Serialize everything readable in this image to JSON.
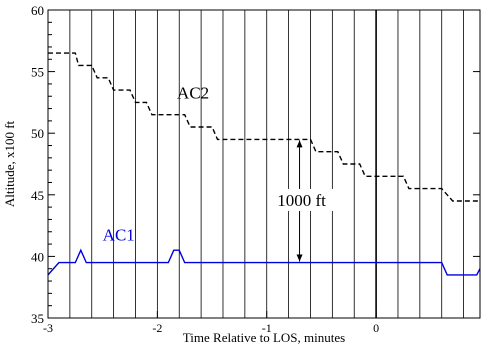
{
  "chart_data": {
    "type": "line",
    "xlabel": "Time Relative to LOS,  minutes",
    "ylabel": "Altitude,  x100 ft",
    "xlim": [
      -3,
      0.95
    ],
    "ylim": [
      35,
      60
    ],
    "x_ticks": [
      -3,
      -2,
      -1,
      0
    ],
    "x_tick_labels": [
      "-3",
      "-2",
      "-1",
      "0"
    ],
    "y_ticks": [
      35,
      40,
      45,
      50,
      55,
      60
    ],
    "y_tick_labels": [
      "35",
      "40",
      "45",
      "50",
      "55",
      "60"
    ],
    "vertical_gridlines_every_minutes": 0.2,
    "los_reference_line_x": 0,
    "series": [
      {
        "name": "AC1",
        "color": "#0000dd",
        "style": "solid",
        "label_at": [
          -2.5,
          41.3
        ],
        "points": [
          [
            -3.0,
            38.5
          ],
          [
            -2.9,
            39.5
          ],
          [
            -2.75,
            39.5
          ],
          [
            -2.7,
            40.5
          ],
          [
            -2.65,
            39.5
          ],
          [
            -1.9,
            39.5
          ],
          [
            -1.85,
            40.5
          ],
          [
            -1.8,
            40.5
          ],
          [
            -1.75,
            39.5
          ],
          [
            0.6,
            39.5
          ],
          [
            0.65,
            38.5
          ],
          [
            0.92,
            38.5
          ],
          [
            0.95,
            39.0
          ]
        ]
      },
      {
        "name": "AC2",
        "color": "#000000",
        "style": "dashed",
        "label_at": [
          -1.82,
          52.8
        ],
        "points": [
          [
            -3.0,
            56.5
          ],
          [
            -2.75,
            56.5
          ],
          [
            -2.72,
            55.5
          ],
          [
            -2.6,
            55.5
          ],
          [
            -2.55,
            54.5
          ],
          [
            -2.45,
            54.5
          ],
          [
            -2.4,
            53.5
          ],
          [
            -2.25,
            53.5
          ],
          [
            -2.2,
            52.5
          ],
          [
            -2.1,
            52.5
          ],
          [
            -2.05,
            51.5
          ],
          [
            -1.75,
            51.5
          ],
          [
            -1.7,
            50.5
          ],
          [
            -1.5,
            50.5
          ],
          [
            -1.45,
            49.5
          ],
          [
            -0.6,
            49.5
          ],
          [
            -0.55,
            48.5
          ],
          [
            -0.35,
            48.5
          ],
          [
            -0.3,
            47.5
          ],
          [
            -0.15,
            47.5
          ],
          [
            -0.1,
            46.5
          ],
          [
            0.25,
            46.5
          ],
          [
            0.3,
            45.5
          ],
          [
            0.6,
            45.5
          ],
          [
            0.7,
            44.5
          ],
          [
            0.95,
            44.5
          ]
        ]
      }
    ],
    "annotations": [
      {
        "text": "1000 ft",
        "x": -0.7,
        "y_from": 39.5,
        "y_to": 49.5
      }
    ]
  }
}
